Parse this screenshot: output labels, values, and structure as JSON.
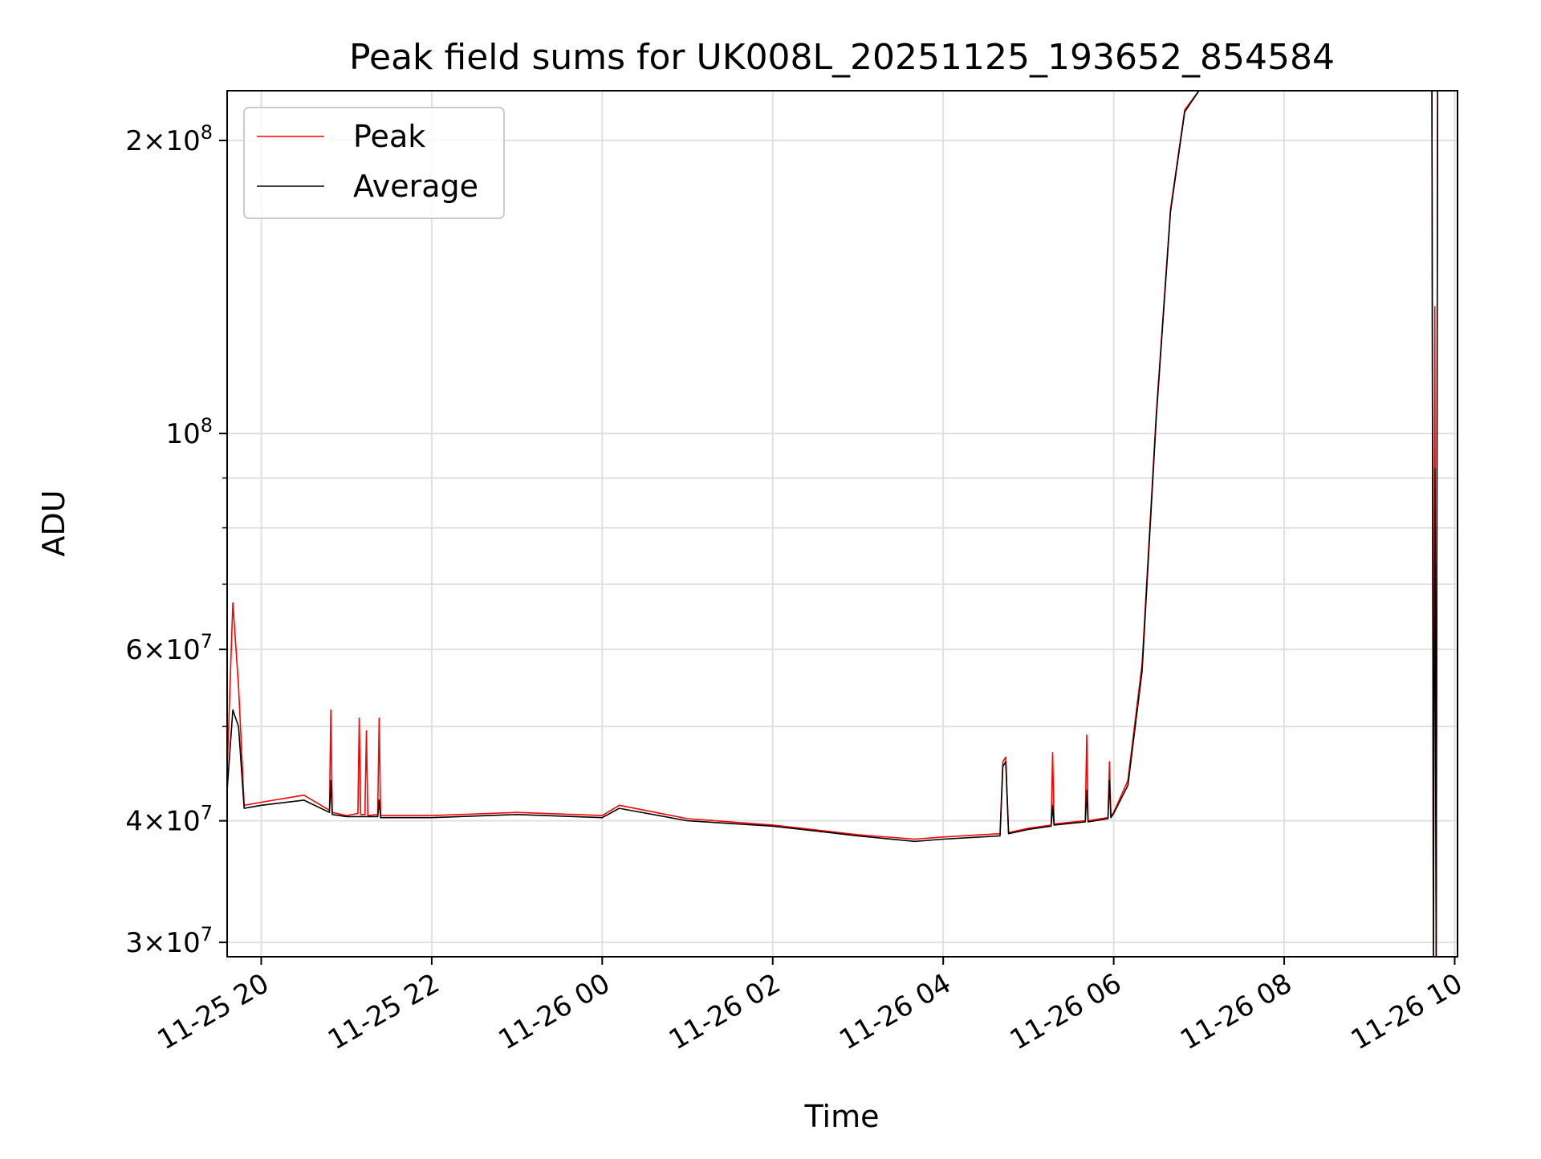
{
  "chart_data": {
    "type": "line",
    "title": "Peak field sums for UK008L_20251125_193652_854584",
    "xlabel": "Time",
    "ylabel": "ADU",
    "yscale": "log",
    "xlim": [
      "2025-11-25 19:36",
      "2025-11-26 10:02"
    ],
    "ylim": [
      29000000,
      225000000
    ],
    "grid": true,
    "legend_position": "upper-left",
    "x_ticks": [
      {
        "label": "11-25 20",
        "value": "2025-11-25 20:00"
      },
      {
        "label": "11-25 22",
        "value": "2025-11-25 22:00"
      },
      {
        "label": "11-26 00",
        "value": "2025-11-26 00:00"
      },
      {
        "label": "11-26 02",
        "value": "2025-11-26 02:00"
      },
      {
        "label": "11-26 04",
        "value": "2025-11-26 04:00"
      },
      {
        "label": "11-26 06",
        "value": "2025-11-26 06:00"
      },
      {
        "label": "11-26 08",
        "value": "2025-11-26 08:00"
      },
      {
        "label": "11-26 10",
        "value": "2025-11-26 10:00"
      }
    ],
    "y_ticks": [
      {
        "base": "3×10",
        "exp": "7",
        "value": 30000000
      },
      {
        "base": "4×10",
        "exp": "7",
        "value": 40000000
      },
      {
        "base": "6×10",
        "exp": "7",
        "value": 60000000
      },
      {
        "base": "10",
        "exp": "8",
        "value": 100000000
      },
      {
        "base": "2×10",
        "exp": "8",
        "value": 200000000
      }
    ],
    "y_minor_ticks": [
      50000000,
      70000000,
      80000000,
      90000000
    ],
    "series": [
      {
        "name": "Peak",
        "color": "#ff0000",
        "x": [
          "2025-11-25 19:36",
          "2025-11-25 19:40",
          "2025-11-25 19:44",
          "2025-11-25 19:48",
          "2025-11-25 20:00",
          "2025-11-25 20:30",
          "2025-11-25 20:48",
          "2025-11-25 20:49",
          "2025-11-25 20:50",
          "2025-11-25 21:00",
          "2025-11-25 21:08",
          "2025-11-25 21:09",
          "2025-11-25 21:10",
          "2025-11-25 21:13",
          "2025-11-25 21:14",
          "2025-11-25 21:15",
          "2025-11-25 21:22",
          "2025-11-25 21:23",
          "2025-11-25 21:24",
          "2025-11-25 22:00",
          "2025-11-25 23:00",
          "2025-11-26 00:00",
          "2025-11-26 00:12",
          "2025-11-26 01:00",
          "2025-11-26 02:00",
          "2025-11-26 03:00",
          "2025-11-26 03:40",
          "2025-11-26 04:00",
          "2025-11-26 04:40",
          "2025-11-26 04:42",
          "2025-11-26 04:44",
          "2025-11-26 04:46",
          "2025-11-26 05:00",
          "2025-11-26 05:16",
          "2025-11-26 05:17",
          "2025-11-26 05:18",
          "2025-11-26 05:40",
          "2025-11-26 05:41",
          "2025-11-26 05:42",
          "2025-11-26 05:56",
          "2025-11-26 05:57",
          "2025-11-26 05:58",
          "2025-11-26 06:00",
          "2025-11-26 06:10",
          "2025-11-26 06:20",
          "2025-11-26 06:30",
          "2025-11-26 06:40",
          "2025-11-26 06:50",
          "2025-11-26 07:00",
          "2025-11-26 07:02",
          "2025-11-26 09:44",
          "2025-11-26 09:45",
          "2025-11-26 09:46",
          "2025-11-26 09:47",
          "2025-11-26 09:48",
          "2025-11-26 10:02"
        ],
        "y": [
          45000000,
          67000000,
          55000000,
          41500000,
          41800000,
          42500000,
          41000000,
          52000000,
          40800000,
          40500000,
          40700000,
          51000000,
          40600000,
          40600000,
          49500000,
          40500000,
          40600000,
          51000000,
          40500000,
          40500000,
          40800000,
          40500000,
          41500000,
          40200000,
          39600000,
          38700000,
          38300000,
          38500000,
          38800000,
          46000000,
          46500000,
          38900000,
          39300000,
          39600000,
          47000000,
          39700000,
          40000000,
          49000000,
          40000000,
          40300000,
          46000000,
          40400000,
          40800000,
          44000000,
          58000000,
          105000000,
          170000000,
          215000000,
          225000000,
          225000000,
          225000000,
          29000000,
          135000000,
          29000000,
          225000000,
          225000000
        ]
      },
      {
        "name": "Average",
        "color": "#000000",
        "x": [
          "2025-11-25 19:36",
          "2025-11-25 19:40",
          "2025-11-25 19:44",
          "2025-11-25 19:48",
          "2025-11-25 20:00",
          "2025-11-25 20:30",
          "2025-11-25 20:48",
          "2025-11-25 20:49",
          "2025-11-25 20:50",
          "2025-11-25 21:00",
          "2025-11-25 21:22",
          "2025-11-25 21:23",
          "2025-11-25 21:24",
          "2025-11-25 22:00",
          "2025-11-25 23:00",
          "2025-11-26 00:00",
          "2025-11-26 00:12",
          "2025-11-26 01:00",
          "2025-11-26 02:00",
          "2025-11-26 03:00",
          "2025-11-26 03:40",
          "2025-11-26 04:00",
          "2025-11-26 04:40",
          "2025-11-26 04:42",
          "2025-11-26 04:44",
          "2025-11-26 04:46",
          "2025-11-26 05:00",
          "2025-11-26 05:16",
          "2025-11-26 05:17",
          "2025-11-26 05:18",
          "2025-11-26 05:40",
          "2025-11-26 05:41",
          "2025-11-26 05:42",
          "2025-11-26 05:56",
          "2025-11-26 05:57",
          "2025-11-26 05:58",
          "2025-11-26 06:00",
          "2025-11-26 06:10",
          "2025-11-26 06:20",
          "2025-11-26 06:30",
          "2025-11-26 06:40",
          "2025-11-26 06:50",
          "2025-11-26 07:00",
          "2025-11-26 07:02",
          "2025-11-26 09:44",
          "2025-11-26 09:45",
          "2025-11-26 09:46",
          "2025-11-26 09:47",
          "2025-11-26 09:48",
          "2025-11-26 10:02"
        ],
        "y": [
          43000000,
          52000000,
          50000000,
          41200000,
          41500000,
          42000000,
          40800000,
          44000000,
          40600000,
          40400000,
          40400000,
          42000000,
          40300000,
          40300000,
          40600000,
          40300000,
          41200000,
          40000000,
          39500000,
          38600000,
          38100000,
          38300000,
          38600000,
          45500000,
          46000000,
          38800000,
          39200000,
          39500000,
          41500000,
          39600000,
          39900000,
          43000000,
          39900000,
          40200000,
          44000000,
          40300000,
          40700000,
          43500000,
          57000000,
          104000000,
          169000000,
          214000000,
          225000000,
          225000000,
          225000000,
          29000000,
          92000000,
          29000000,
          225000000,
          225000000
        ]
      }
    ]
  }
}
